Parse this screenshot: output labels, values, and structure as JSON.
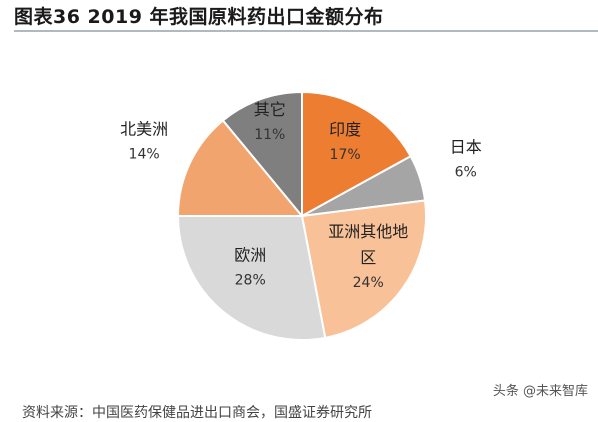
{
  "figure": {
    "title": "图表36    2019 年我国原料药出口金额分布"
  },
  "chart_data": {
    "type": "pie",
    "title": "",
    "slices": [
      {
        "name": "印度",
        "label_lines": [
          "印度"
        ],
        "value": 17,
        "value_label": "17%",
        "color": "#ED7D31"
      },
      {
        "name": "日本",
        "label_lines": [
          "日本"
        ],
        "value": 6,
        "value_label": "6%",
        "color": "#A5A5A5"
      },
      {
        "name": "亚洲其他地区",
        "label_lines": [
          "亚洲其他地",
          "区"
        ],
        "value": 24,
        "value_label": "24%",
        "color": "#F8C197"
      },
      {
        "name": "欧洲",
        "label_lines": [
          "欧洲"
        ],
        "value": 28,
        "value_label": "28%",
        "color": "#D9D9D9"
      },
      {
        "name": "北美洲",
        "label_lines": [
          "北美洲"
        ],
        "value": 14,
        "value_label": "14%",
        "color": "#F2A46F"
      },
      {
        "name": "其它",
        "label_lines": [
          "其它"
        ],
        "value": 11,
        "value_label": "11%",
        "color": "#7F7F7F"
      }
    ],
    "start_angle_deg": 0,
    "direction": "clockwise",
    "legend": "none"
  },
  "footer": {
    "watermark": "头条 @未来智库",
    "source": "资料来源：中国医药保健品进出口商会，国盛证券研究所"
  }
}
